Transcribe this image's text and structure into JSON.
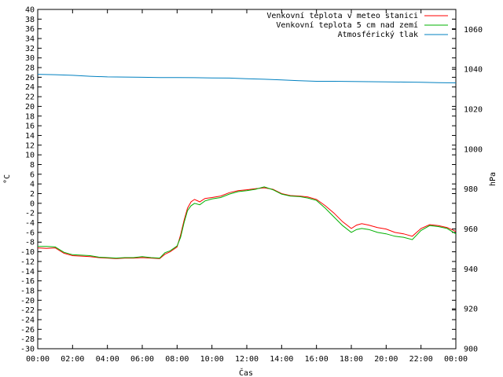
{
  "chart_data": {
    "type": "line",
    "xlabel": "Čas",
    "ylabel_left": "°C",
    "ylabel_right": "hPa",
    "x_ticks": [
      "00:00",
      "02:00",
      "04:00",
      "06:00",
      "08:00",
      "10:00",
      "12:00",
      "14:00",
      "16:00",
      "18:00",
      "20:00",
      "22:00",
      "00:00"
    ],
    "x_range_hours": [
      0,
      24
    ],
    "ylim_left": [
      -30,
      40
    ],
    "ylim_right": [
      900,
      1070
    ],
    "y_ticks_left": [
      40,
      38,
      36,
      34,
      32,
      30,
      28,
      26,
      24,
      22,
      20,
      18,
      16,
      14,
      12,
      10,
      8,
      6,
      4,
      2,
      0,
      -2,
      -4,
      -6,
      -8,
      -10,
      -12,
      -14,
      -16,
      -18,
      -20,
      -22,
      -24,
      -26,
      -28,
      -30
    ],
    "y_ticks_right": [
      1060,
      1040,
      1020,
      1000,
      980,
      960,
      940,
      920,
      900
    ],
    "grid": false,
    "legend_position": "top-right",
    "series": [
      {
        "name": "Venkovní teplota v meteo stanici",
        "axis": "left",
        "color": "#ff0000",
        "x": [
          0,
          0.5,
          1,
          1.5,
          2,
          2.5,
          3,
          3.5,
          4,
          4.5,
          5,
          5.5,
          6,
          6.5,
          7,
          7.3,
          7.6,
          8,
          8.2,
          8.4,
          8.6,
          8.8,
          9,
          9.3,
          9.6,
          10,
          10.5,
          11,
          11.5,
          12,
          12.5,
          13,
          13.5,
          14,
          14.5,
          15,
          15.5,
          16,
          16.5,
          17,
          17.5,
          18,
          18.3,
          18.6,
          19,
          19.5,
          20,
          20.5,
          21,
          21.5,
          22,
          22.5,
          23,
          23.5,
          24
        ],
        "y": [
          -9.2,
          -9.3,
          -9.2,
          -10.3,
          -10.8,
          -10.9,
          -11.0,
          -11.2,
          -11.3,
          -11.4,
          -11.3,
          -11.3,
          -11.2,
          -11.3,
          -11.4,
          -10.5,
          -10.0,
          -9.0,
          -6.5,
          -3.5,
          -1.0,
          0.3,
          0.8,
          0.3,
          1.0,
          1.2,
          1.5,
          2.2,
          2.6,
          2.8,
          3.0,
          3.2,
          2.9,
          2.0,
          1.6,
          1.5,
          1.3,
          0.8,
          -0.5,
          -2.0,
          -3.8,
          -5.2,
          -4.5,
          -4.2,
          -4.5,
          -5.0,
          -5.3,
          -6.0,
          -6.3,
          -6.8,
          -5.2,
          -4.4,
          -4.6,
          -5.0,
          -5.8
        ]
      },
      {
        "name": "Venkovní teplota 5 cm nad zemí",
        "axis": "left",
        "color": "#00b000",
        "x": [
          0,
          0.5,
          1,
          1.5,
          2,
          2.5,
          3,
          3.5,
          4,
          4.5,
          5,
          5.5,
          6,
          6.5,
          7,
          7.3,
          7.6,
          8,
          8.2,
          8.4,
          8.6,
          8.8,
          9,
          9.3,
          9.6,
          10,
          10.5,
          11,
          11.5,
          12,
          12.5,
          13,
          13.5,
          14,
          14.5,
          15,
          15.5,
          16,
          16.5,
          17,
          17.5,
          18,
          18.3,
          18.6,
          19,
          19.5,
          20,
          20.5,
          21,
          21.5,
          22,
          22.5,
          23,
          23.5,
          24
        ],
        "y": [
          -8.9,
          -8.9,
          -9.0,
          -10.1,
          -10.6,
          -10.7,
          -10.8,
          -11.1,
          -11.2,
          -11.3,
          -11.2,
          -11.2,
          -11.0,
          -11.2,
          -11.3,
          -10.2,
          -9.8,
          -8.8,
          -7.0,
          -4.0,
          -1.5,
          -0.5,
          0.0,
          -0.3,
          0.5,
          0.9,
          1.2,
          1.9,
          2.4,
          2.6,
          2.9,
          3.4,
          2.8,
          1.9,
          1.5,
          1.4,
          1.1,
          0.6,
          -1.0,
          -2.8,
          -4.6,
          -6.0,
          -5.4,
          -5.2,
          -5.4,
          -6.0,
          -6.3,
          -6.8,
          -7.0,
          -7.5,
          -5.6,
          -4.6,
          -4.8,
          -5.2,
          -6.3
        ]
      },
      {
        "name": "Atmosférický tlak",
        "axis": "right",
        "color": "#0080c0",
        "x": [
          0,
          1,
          2,
          3,
          4,
          5,
          6,
          7,
          8,
          9,
          10,
          11,
          12,
          13,
          14,
          15,
          16,
          17,
          18,
          19,
          20,
          21,
          22,
          23,
          24
        ],
        "y": [
          1037.5,
          1037.3,
          1037.0,
          1036.5,
          1036.2,
          1036.1,
          1036.0,
          1035.9,
          1035.9,
          1035.8,
          1035.7,
          1035.6,
          1035.3,
          1035.0,
          1034.7,
          1034.3,
          1034.0,
          1034.0,
          1033.9,
          1033.8,
          1033.7,
          1033.6,
          1033.5,
          1033.3,
          1033.2
        ]
      }
    ]
  }
}
